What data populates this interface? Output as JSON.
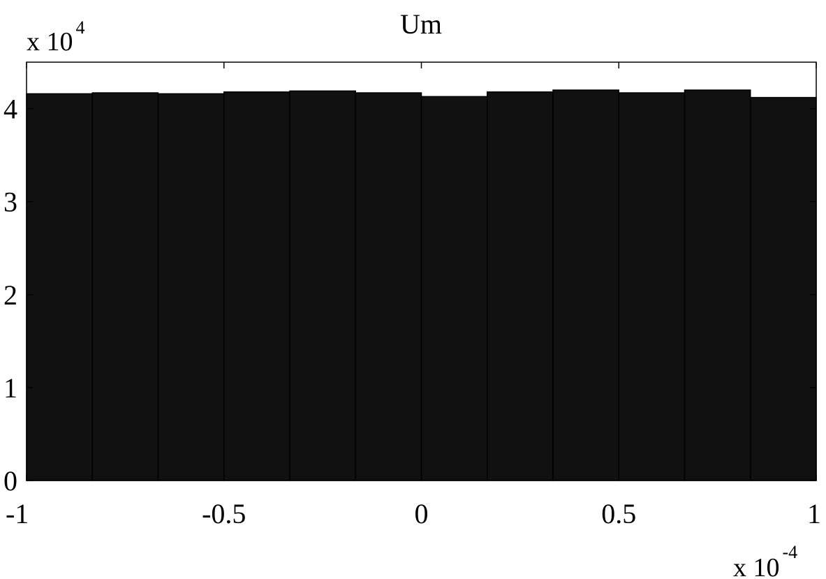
{
  "chart_data": {
    "type": "bar",
    "title": "Um",
    "xlabel": "",
    "ylabel": "",
    "x_multiplier": {
      "base": "x 10",
      "exponent": "-4"
    },
    "y_multiplier": {
      "base": "x 10",
      "exponent": "4"
    },
    "xlim": [
      -1,
      1
    ],
    "ylim": [
      0,
      4.5
    ],
    "x_ticks": [
      -1,
      -0.5,
      0,
      0.5,
      1
    ],
    "x_tick_labels": [
      "-1",
      "-0.5",
      "0",
      "0.5",
      "1"
    ],
    "y_ticks": [
      0,
      1,
      2,
      3,
      4
    ],
    "y_tick_labels": [
      "0",
      "1",
      "2",
      "3",
      "4"
    ],
    "bin_edges": [
      -1,
      -0.8333,
      -0.6667,
      -0.5,
      -0.3333,
      -0.1667,
      0,
      0.1667,
      0.3333,
      0.5,
      0.6667,
      0.8333,
      1
    ],
    "values": [
      4.16,
      4.17,
      4.16,
      4.18,
      4.19,
      4.17,
      4.13,
      4.18,
      4.2,
      4.17,
      4.2,
      4.12
    ],
    "bar_color": "#111111",
    "grid": false
  }
}
